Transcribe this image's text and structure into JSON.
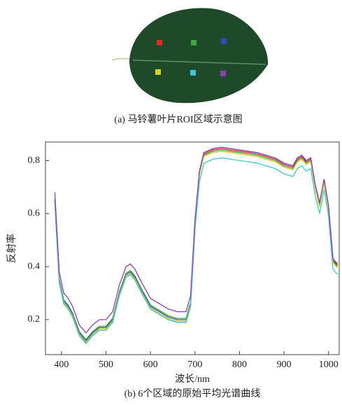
{
  "panel_a": {
    "caption": "(a) 马铃薯叶片ROI区域示意图"
  },
  "chart_data": {
    "type": "line",
    "caption": "(b) 6个区域的原始平均光谱曲线",
    "xlabel": "波长/nm",
    "ylabel": "反射率",
    "xlim": [
      364,
      1024
    ],
    "ylim": [
      0.068,
      0.87
    ],
    "xticks": [
      400,
      500,
      600,
      700,
      800,
      900,
      1000
    ],
    "yticks": [
      0.2,
      0.4,
      0.6,
      0.8
    ],
    "x": [
      385,
      395,
      405,
      415,
      425,
      440,
      455,
      470,
      485,
      500,
      515,
      530,
      545,
      555,
      565,
      580,
      600,
      620,
      640,
      660,
      680,
      690,
      700,
      710,
      720,
      740,
      760,
      780,
      800,
      820,
      840,
      860,
      880,
      900,
      920,
      930,
      940,
      950,
      960,
      970,
      980,
      990,
      1000,
      1010,
      1020
    ],
    "series": [
      {
        "color": "#e8262a",
        "values": [
          0.64,
          0.34,
          0.26,
          0.24,
          0.21,
          0.14,
          0.11,
          0.14,
          0.16,
          0.16,
          0.19,
          0.29,
          0.36,
          0.37,
          0.35,
          0.3,
          0.24,
          0.22,
          0.2,
          0.19,
          0.19,
          0.25,
          0.54,
          0.755,
          0.825,
          0.84,
          0.845,
          0.84,
          0.835,
          0.83,
          0.825,
          0.815,
          0.805,
          0.785,
          0.775,
          0.805,
          0.815,
          0.795,
          0.805,
          0.705,
          0.635,
          0.725,
          0.625,
          0.425,
          0.405
        ]
      },
      {
        "color": "#3aa83a",
        "values": [
          0.655,
          0.355,
          0.275,
          0.255,
          0.225,
          0.155,
          0.125,
          0.155,
          0.175,
          0.175,
          0.205,
          0.305,
          0.375,
          0.385,
          0.365,
          0.315,
          0.255,
          0.235,
          0.215,
          0.205,
          0.205,
          0.265,
          0.555,
          0.75,
          0.82,
          0.835,
          0.84,
          0.835,
          0.83,
          0.825,
          0.82,
          0.81,
          0.8,
          0.78,
          0.77,
          0.8,
          0.81,
          0.79,
          0.8,
          0.7,
          0.63,
          0.72,
          0.62,
          0.42,
          0.4
        ]
      },
      {
        "color": "#2a4fb8",
        "values": [
          0.65,
          0.35,
          0.27,
          0.25,
          0.22,
          0.15,
          0.12,
          0.15,
          0.17,
          0.17,
          0.2,
          0.3,
          0.37,
          0.38,
          0.36,
          0.31,
          0.25,
          0.23,
          0.21,
          0.2,
          0.2,
          0.26,
          0.55,
          0.76,
          0.83,
          0.845,
          0.85,
          0.845,
          0.84,
          0.835,
          0.83,
          0.82,
          0.81,
          0.79,
          0.78,
          0.81,
          0.82,
          0.8,
          0.81,
          0.71,
          0.64,
          0.73,
          0.63,
          0.43,
          0.41
        ]
      },
      {
        "color": "#d8d020",
        "values": [
          0.645,
          0.345,
          0.265,
          0.245,
          0.215,
          0.145,
          0.115,
          0.145,
          0.165,
          0.165,
          0.195,
          0.295,
          0.365,
          0.375,
          0.355,
          0.305,
          0.245,
          0.225,
          0.205,
          0.195,
          0.195,
          0.255,
          0.545,
          0.745,
          0.815,
          0.83,
          0.835,
          0.83,
          0.825,
          0.82,
          0.815,
          0.805,
          0.795,
          0.775,
          0.765,
          0.795,
          0.805,
          0.785,
          0.795,
          0.695,
          0.625,
          0.715,
          0.615,
          0.415,
          0.395
        ]
      },
      {
        "color": "#3cc8d8",
        "values": [
          0.64,
          0.34,
          0.26,
          0.24,
          0.21,
          0.14,
          0.11,
          0.14,
          0.16,
          0.16,
          0.19,
          0.29,
          0.36,
          0.37,
          0.35,
          0.3,
          0.24,
          0.22,
          0.2,
          0.19,
          0.19,
          0.25,
          0.54,
          0.72,
          0.79,
          0.805,
          0.81,
          0.805,
          0.8,
          0.795,
          0.79,
          0.78,
          0.77,
          0.75,
          0.74,
          0.77,
          0.78,
          0.76,
          0.77,
          0.67,
          0.6,
          0.69,
          0.59,
          0.39,
          0.37
        ]
      },
      {
        "color": "#9040b0",
        "values": [
          0.68,
          0.38,
          0.3,
          0.28,
          0.25,
          0.18,
          0.15,
          0.18,
          0.2,
          0.2,
          0.23,
          0.33,
          0.4,
          0.41,
          0.39,
          0.34,
          0.28,
          0.26,
          0.24,
          0.23,
          0.23,
          0.29,
          0.58,
          0.76,
          0.83,
          0.845,
          0.85,
          0.845,
          0.84,
          0.835,
          0.83,
          0.82,
          0.81,
          0.79,
          0.78,
          0.81,
          0.82,
          0.8,
          0.81,
          0.71,
          0.64,
          0.73,
          0.63,
          0.43,
          0.41
        ]
      }
    ]
  }
}
